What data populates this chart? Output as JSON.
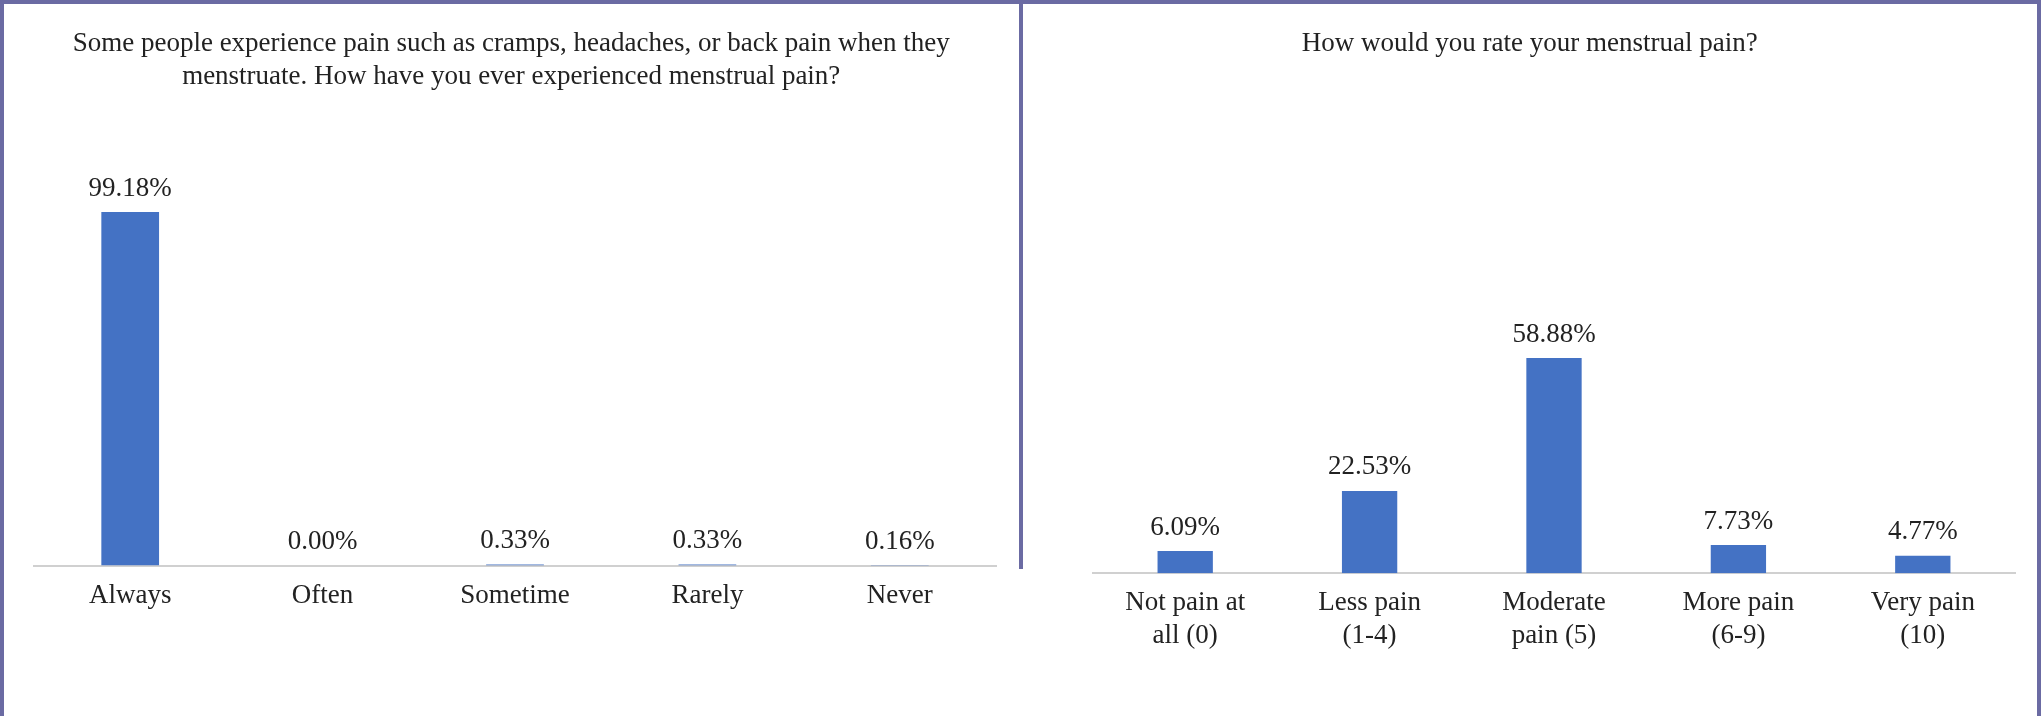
{
  "chart_data": [
    {
      "type": "bar",
      "title": "Some people experience pain such as cramps, headaches, or back pain when they menstruate. How have you ever experienced menstrual pain?",
      "categories": [
        "Always",
        "Often",
        "Sometime",
        "Rarely",
        "Never"
      ],
      "values": [
        99.18,
        0.0,
        0.33,
        0.33,
        0.16
      ],
      "value_labels": [
        "99.18%",
        "0.00%",
        "0.33%",
        "0.33%",
        "0.16%"
      ],
      "color": "#4472c4",
      "grid": false,
      "legend": false,
      "tick_labels": "x"
    },
    {
      "type": "bar",
      "title": "How would you rate your menstrual pain?",
      "categories": [
        "Not pain at all (0)",
        "Less pain (1-4)",
        "Moderate pain (5)",
        "More pain (6-9)",
        "Very pain (10)"
      ],
      "values": [
        6.09,
        22.53,
        58.88,
        7.73,
        4.77
      ],
      "value_labels": [
        "6.09%",
        "22.53%",
        "58.88%",
        "7.73%",
        "4.77%"
      ],
      "color": "#4472c4",
      "grid": false,
      "legend": false,
      "tick_labels": "x"
    }
  ]
}
